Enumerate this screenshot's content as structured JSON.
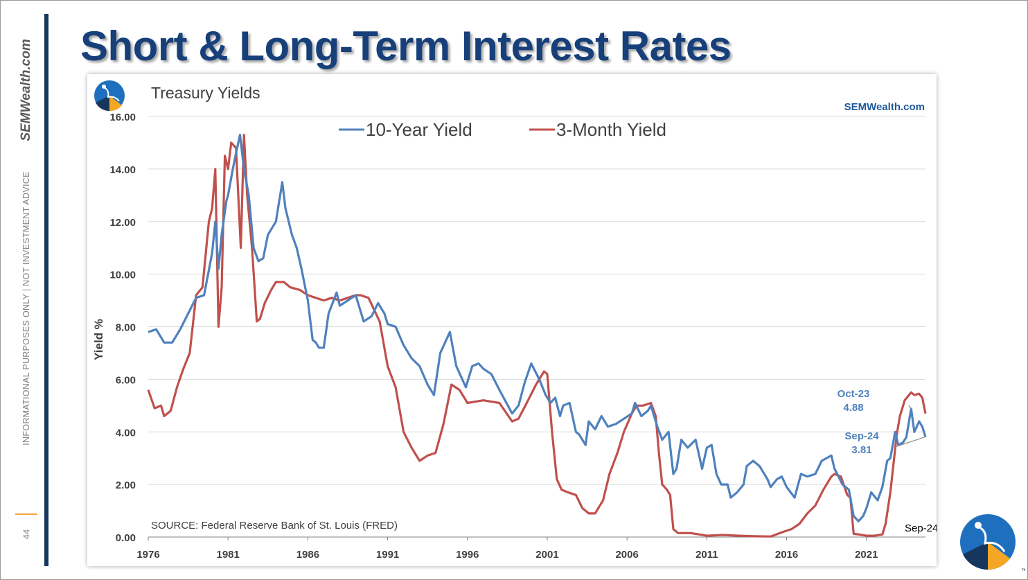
{
  "slide": {
    "title": "Short & Long-Term Interest Rates",
    "side_brand": "SEMWealth.com",
    "disclaimer": "INFORMATIONAL PURPOSES ONLY | NOT INVESTMENT ADVICE",
    "page_number": "44"
  },
  "colors": {
    "title": "#17407a",
    "series_10y": "#4f81bd",
    "series_3m": "#c0504d",
    "annotation": "#4f81bd",
    "logo_blue": "#1f6fbf",
    "logo_navy": "#17365d",
    "logo_orange": "#f5a623"
  },
  "chart_data": {
    "type": "line",
    "title": "Treasury Yields",
    "watermark": "SEMWealth.com",
    "ylabel": "Yield %",
    "xlabel": "",
    "ylim": [
      0,
      16
    ],
    "xlim": [
      1976.0,
      2024.7
    ],
    "yticks": [
      "0.00",
      "2.00",
      "4.00",
      "6.00",
      "8.00",
      "10.00",
      "12.00",
      "14.00",
      "16.00"
    ],
    "xticks": [
      "1976",
      "1981",
      "1986",
      "1991",
      "1996",
      "2001",
      "2006",
      "2011",
      "2016",
      "2021"
    ],
    "source": "SOURCE:  Federal Reserve Bank of St. Louis (FRED)",
    "date_stamp": "Sep-24",
    "grid": true,
    "legend": "top",
    "series": [
      {
        "name": "10-Year Yield",
        "key": "10y",
        "x": [
          1976.0,
          1976.5,
          1977.0,
          1977.5,
          1978.0,
          1978.5,
          1979.0,
          1979.5,
          1980.0,
          1980.2,
          1980.4,
          1980.6,
          1980.9,
          1981.0,
          1981.3,
          1981.5,
          1981.75,
          1982.0,
          1982.3,
          1982.6,
          1982.9,
          1983.2,
          1983.5,
          1983.8,
          1984.0,
          1984.4,
          1984.6,
          1985.0,
          1985.3,
          1985.6,
          1986.0,
          1986.3,
          1986.5,
          1986.7,
          1987.0,
          1987.3,
          1987.8,
          1988.0,
          1988.5,
          1989.0,
          1989.5,
          1990.0,
          1990.4,
          1990.8,
          1991.0,
          1991.5,
          1992.0,
          1992.5,
          1993.0,
          1993.5,
          1993.9,
          1994.3,
          1994.9,
          1995.3,
          1995.9,
          1996.3,
          1996.7,
          1997.0,
          1997.5,
          1998.0,
          1998.8,
          1999.2,
          1999.6,
          2000.0,
          2000.5,
          2000.9,
          2001.2,
          2001.5,
          2001.8,
          2002.0,
          2002.4,
          2002.8,
          2003.0,
          2003.4,
          2003.6,
          2004.0,
          2004.4,
          2004.8,
          2005.3,
          2005.8,
          2006.3,
          2006.5,
          2006.9,
          2007.3,
          2007.5,
          2007.9,
          2008.2,
          2008.6,
          2008.9,
          2009.1,
          2009.4,
          2009.8,
          2010.3,
          2010.7,
          2011.0,
          2011.3,
          2011.6,
          2011.9,
          2012.3,
          2012.5,
          2012.9,
          2013.3,
          2013.5,
          2013.9,
          2014.3,
          2014.8,
          2015.0,
          2015.4,
          2015.7,
          2016.0,
          2016.5,
          2016.9,
          2017.3,
          2017.8,
          2018.2,
          2018.8,
          2019.0,
          2019.5,
          2019.9,
          2020.2,
          2020.5,
          2020.8,
          2021.0,
          2021.3,
          2021.7,
          2022.0,
          2022.3,
          2022.5,
          2022.8,
          2023.0,
          2023.3,
          2023.5,
          2023.8,
          2024.0,
          2024.3,
          2024.5,
          2024.7
        ],
        "values": [
          7.8,
          7.9,
          7.4,
          7.4,
          7.9,
          8.5,
          9.1,
          9.2,
          10.8,
          12.0,
          10.2,
          11.5,
          12.8,
          13.0,
          14.0,
          14.6,
          15.3,
          14.0,
          13.0,
          11.0,
          10.5,
          10.6,
          11.5,
          11.8,
          12.0,
          13.5,
          12.5,
          11.5,
          11.0,
          10.2,
          9.0,
          7.5,
          7.4,
          7.2,
          7.2,
          8.5,
          9.3,
          8.8,
          9.0,
          9.2,
          8.2,
          8.4,
          8.9,
          8.5,
          8.1,
          8.0,
          7.3,
          6.8,
          6.5,
          5.8,
          5.4,
          7.0,
          7.8,
          6.5,
          5.7,
          6.5,
          6.6,
          6.4,
          6.2,
          5.6,
          4.7,
          5.0,
          5.9,
          6.6,
          6.0,
          5.4,
          5.1,
          5.3,
          4.6,
          5.0,
          5.1,
          4.0,
          3.9,
          3.5,
          4.4,
          4.1,
          4.6,
          4.2,
          4.3,
          4.5,
          4.7,
          5.1,
          4.6,
          4.8,
          5.0,
          4.2,
          3.7,
          4.0,
          2.4,
          2.6,
          3.7,
          3.4,
          3.7,
          2.6,
          3.4,
          3.5,
          2.4,
          2.0,
          2.0,
          1.5,
          1.7,
          2.0,
          2.7,
          2.9,
          2.7,
          2.2,
          1.9,
          2.2,
          2.3,
          1.9,
          1.5,
          2.4,
          2.3,
          2.4,
          2.9,
          3.1,
          2.6,
          2.0,
          1.8,
          0.8,
          0.6,
          0.8,
          1.1,
          1.7,
          1.4,
          1.9,
          2.9,
          3.0,
          4.0,
          3.5,
          3.6,
          3.8,
          4.88,
          4.0,
          4.4,
          4.2,
          3.81
        ]
      },
      {
        "name": "3-Month Yield",
        "key": "3m",
        "x": [
          1976.0,
          1976.4,
          1976.8,
          1977.0,
          1977.4,
          1977.8,
          1978.2,
          1978.6,
          1979.0,
          1979.4,
          1979.8,
          1980.0,
          1980.2,
          1980.4,
          1980.6,
          1980.8,
          1981.0,
          1981.2,
          1981.5,
          1981.8,
          1982.0,
          1982.2,
          1982.5,
          1982.8,
          1983.0,
          1983.3,
          1983.7,
          1984.0,
          1984.5,
          1984.9,
          1985.5,
          1986.0,
          1986.5,
          1987.0,
          1987.5,
          1988.0,
          1988.5,
          1989.0,
          1989.3,
          1989.8,
          1990.5,
          1991.0,
          1991.5,
          1992.0,
          1992.5,
          1993.0,
          1993.5,
          1994.0,
          1994.5,
          1995.0,
          1995.5,
          1996.0,
          1997.0,
          1998.0,
          1998.8,
          1999.2,
          1999.8,
          2000.3,
          2000.8,
          2001.0,
          2001.3,
          2001.6,
          2001.9,
          2002.3,
          2002.8,
          2003.2,
          2003.6,
          2004.0,
          2004.5,
          2004.9,
          2005.4,
          2005.8,
          2006.3,
          2006.6,
          2007.0,
          2007.5,
          2007.8,
          2008.0,
          2008.2,
          2008.5,
          2008.7,
          2008.9,
          2009.2,
          2010.0,
          2011.0,
          2012.0,
          2013.0,
          2014.0,
          2015.0,
          2015.8,
          2016.3,
          2016.8,
          2017.3,
          2017.8,
          2018.3,
          2018.8,
          2019.0,
          2019.4,
          2019.8,
          2020.0,
          2020.2,
          2020.5,
          2021.0,
          2021.5,
          2022.0,
          2022.2,
          2022.5,
          2022.7,
          2022.9,
          2023.1,
          2023.4,
          2023.8,
          2024.0,
          2024.3,
          2024.5,
          2024.7
        ],
        "values": [
          5.6,
          4.9,
          5.0,
          4.6,
          4.8,
          5.7,
          6.4,
          7.0,
          9.2,
          9.5,
          12.0,
          12.5,
          14.0,
          8.0,
          9.5,
          14.5,
          14.0,
          15.0,
          14.8,
          11.0,
          15.3,
          13.0,
          11.0,
          8.2,
          8.3,
          8.9,
          9.4,
          9.7,
          9.7,
          9.5,
          9.4,
          9.2,
          9.1,
          9.0,
          9.1,
          9.0,
          9.1,
          9.2,
          9.2,
          9.1,
          8.2,
          6.5,
          5.7,
          4.0,
          3.4,
          2.9,
          3.1,
          3.2,
          4.3,
          5.8,
          5.6,
          5.1,
          5.2,
          5.1,
          4.4,
          4.5,
          5.2,
          5.8,
          6.3,
          6.2,
          4.0,
          2.2,
          1.8,
          1.7,
          1.6,
          1.1,
          0.9,
          0.9,
          1.4,
          2.4,
          3.2,
          4.0,
          4.7,
          5.0,
          5.0,
          5.1,
          4.6,
          3.2,
          2.0,
          1.8,
          1.6,
          0.3,
          0.15,
          0.15,
          0.05,
          0.08,
          0.05,
          0.03,
          0.02,
          0.2,
          0.3,
          0.5,
          0.9,
          1.2,
          1.8,
          2.3,
          2.4,
          2.3,
          1.6,
          1.5,
          0.12,
          0.1,
          0.05,
          0.05,
          0.1,
          0.5,
          1.7,
          2.8,
          3.9,
          4.6,
          5.2,
          5.5,
          5.4,
          5.45,
          5.3,
          4.7
        ]
      }
    ],
    "annotations": [
      {
        "label": "Oct-23",
        "value_label": "4.88",
        "x": 2023.8,
        "y": 4.88
      },
      {
        "label": "Sep-24",
        "value_label": "3.81",
        "x": 2024.7,
        "y": 3.81
      }
    ]
  }
}
